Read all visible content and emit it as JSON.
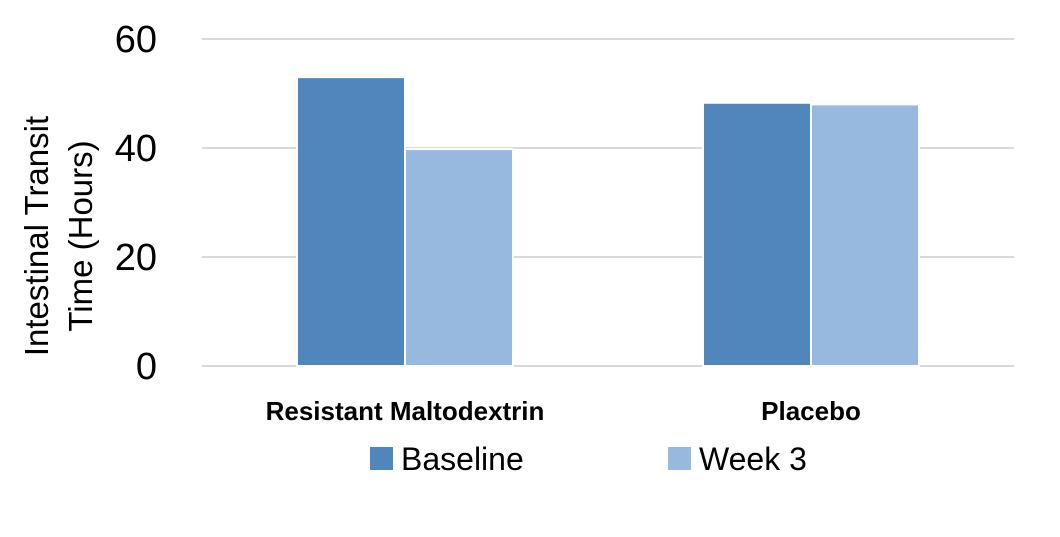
{
  "chart_data": {
    "type": "bar",
    "title": "",
    "categories": [
      "Resistant Maltodextrin",
      "Placebo"
    ],
    "series": [
      {
        "name": "Baseline",
        "values": [
          53,
          48.3
        ],
        "color": "#4f86bb"
      },
      {
        "name": "Week 3",
        "values": [
          39.8,
          48
        ],
        "color": "#98b9df"
      }
    ],
    "ylabel_lines": [
      "Intestinal Transit",
      "Time (Hours)"
    ],
    "ylim": [
      0,
      60
    ],
    "yticks": [
      0,
      20,
      40,
      60
    ],
    "grid": true,
    "legend_position": "bottom"
  }
}
